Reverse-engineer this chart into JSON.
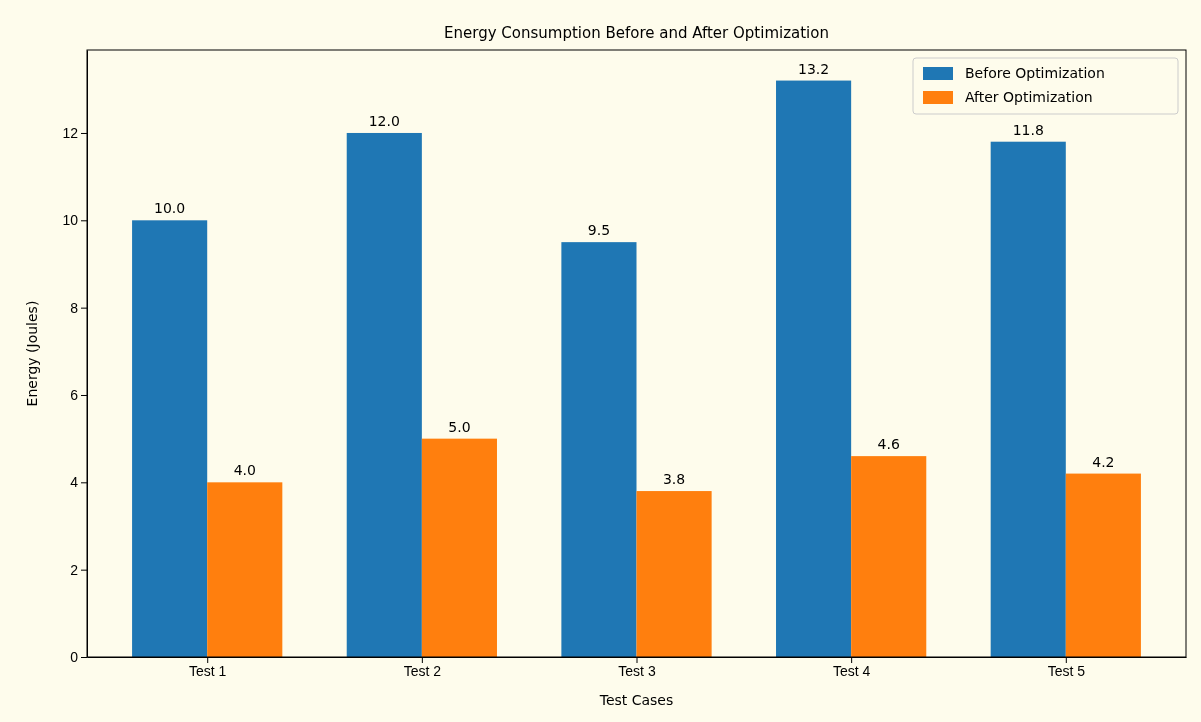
{
  "chart_data": {
    "type": "bar",
    "title": "Energy Consumption Before and After Optimization",
    "xlabel": "Test Cases",
    "ylabel": "Energy (Joules)",
    "categories": [
      "Test 1",
      "Test 2",
      "Test 3",
      "Test 4",
      "Test 5"
    ],
    "series": [
      {
        "name": "Before Optimization",
        "color": "#1f77b4",
        "values": [
          10.0,
          12.0,
          9.5,
          13.2,
          11.8
        ],
        "value_labels": [
          "10.0",
          "12.0",
          "9.5",
          "13.2",
          "11.8"
        ]
      },
      {
        "name": "After Optimization",
        "color": "#ff7f0e",
        "values": [
          4.0,
          5.0,
          3.8,
          4.6,
          4.2
        ],
        "value_labels": [
          "4.0",
          "5.0",
          "3.8",
          "4.6",
          "4.2"
        ]
      }
    ],
    "ylim": [
      0,
      13.9
    ],
    "yticks": [
      0,
      2,
      4,
      6,
      8,
      10,
      12
    ],
    "legend": "top right",
    "grid": false
  }
}
